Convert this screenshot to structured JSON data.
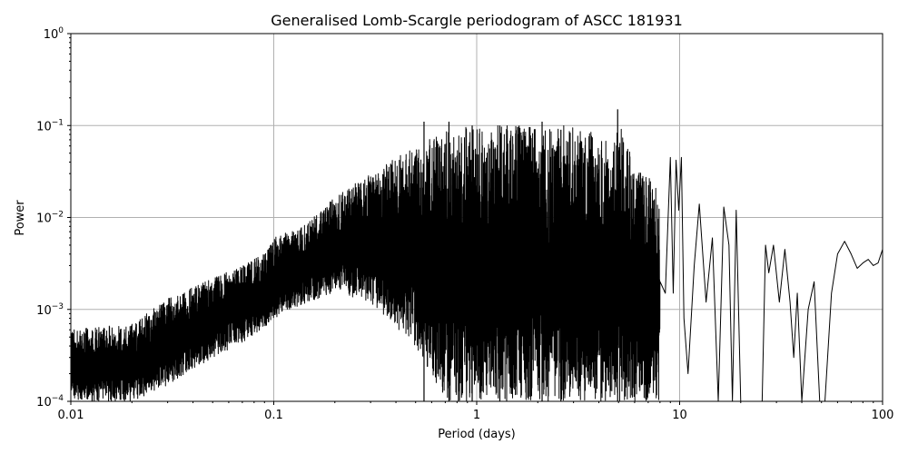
{
  "chart_data": {
    "type": "line",
    "title": "Generalised Lomb-Scargle periodogram of ASCC 181931",
    "xlabel": "Period (days)",
    "ylabel": "Power",
    "xscale": "log",
    "yscale": "log",
    "xlim": [
      0.01,
      100
    ],
    "ylim": [
      0.0001,
      1
    ],
    "grid": true,
    "line_color": "#000000",
    "x_ticks": [
      {
        "value": 0.01,
        "label": "0.01"
      },
      {
        "value": 0.1,
        "label": "0.1"
      },
      {
        "value": 1,
        "label": "1"
      },
      {
        "value": 10,
        "label": "10"
      },
      {
        "value": 100,
        "label": "100"
      }
    ],
    "y_ticks": [
      {
        "value": 0.0001,
        "base": "10",
        "exp": "−4"
      },
      {
        "value": 0.001,
        "base": "10",
        "exp": "−3"
      },
      {
        "value": 0.01,
        "base": "10",
        "exp": "−2"
      },
      {
        "value": 0.1,
        "base": "10",
        "exp": "−1"
      },
      {
        "value": 1,
        "base": "10",
        "exp": "0"
      }
    ],
    "series": [
      {
        "envelope": {
          "period": [
            0.01,
            0.02,
            0.03,
            0.05,
            0.08,
            0.1,
            0.15,
            0.2,
            0.3,
            0.5,
            0.7,
            1.0,
            1.5,
            2.0,
            3.0,
            4.0,
            5.0,
            6.0,
            8.0
          ],
          "upper": [
            0.0006,
            0.0007,
            0.0013,
            0.0022,
            0.0035,
            0.006,
            0.009,
            0.017,
            0.03,
            0.06,
            0.09,
            0.1,
            0.1,
            0.1,
            0.1,
            0.08,
            0.13,
            0.04,
            0.02
          ],
          "lower": [
            0.0001,
            0.0001,
            0.00015,
            0.0003,
            0.0005,
            0.0008,
            0.0012,
            0.0015,
            0.0012,
            0.0004,
            0.0001,
            0.0001,
            0.0001,
            0.0001,
            0.0001,
            0.0001,
            0.0001,
            0.0001,
            0.0001
          ]
        },
        "peaks": [
          {
            "period": 0.55,
            "power": 0.11
          },
          {
            "period": 0.73,
            "power": 0.11
          },
          {
            "period": 0.95,
            "power": 0.1
          },
          {
            "period": 1.3,
            "power": 0.1
          },
          {
            "period": 2.1,
            "power": 0.11
          },
          {
            "period": 2.6,
            "power": 0.09
          },
          {
            "period": 4.95,
            "power": 0.15
          }
        ],
        "resolved": {
          "period": [
            8.5,
            9.0,
            9.3,
            9.6,
            9.9,
            10.2,
            10.5,
            11.0,
            11.8,
            12.5,
            13.5,
            14.5,
            15.5,
            16.5,
            17.5,
            18.2,
            19.0,
            20.0,
            20.8,
            21.5,
            22.5,
            24.0,
            25.5,
            26.5,
            27.5,
            29.0,
            31.0,
            33.0,
            35.0,
            36.5,
            38.0,
            40.0,
            43.0,
            46.0,
            49.0,
            52.0,
            56.0,
            60.0,
            65.0,
            70.0,
            75.0,
            80.0,
            85.0,
            90.0,
            95.0,
            100.0
          ],
          "power": [
            0.0015,
            0.045,
            0.0015,
            0.042,
            0.012,
            0.045,
            0.0008,
            0.0002,
            0.003,
            0.014,
            0.0012,
            0.006,
            0.0001,
            0.013,
            0.005,
            0.0001,
            0.012,
            0.0001,
            0.0001,
            0.0001,
            0.0001,
            0.0001,
            0.0001,
            0.005,
            0.0025,
            0.005,
            0.0012,
            0.0045,
            0.0012,
            0.0003,
            0.0015,
            0.0001,
            0.001,
            0.002,
            0.0001,
            0.0001,
            0.0015,
            0.004,
            0.0055,
            0.004,
            0.0028,
            0.0032,
            0.0035,
            0.003,
            0.0032,
            0.0045
          ]
        }
      }
    ]
  }
}
